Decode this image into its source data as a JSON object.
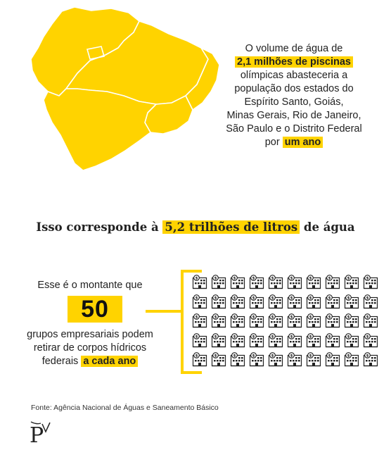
{
  "intro": {
    "line1": "O volume de água de",
    "highlight": "2,1 milhões de piscinas",
    "line3": "olímpicas abasteceria a",
    "line4": "população dos estados do",
    "line5": "Espírito Santo, Goiás,",
    "line6": "Minas Gerais, Rio de Janeiro,",
    "line7": "São Paulo e o Distrito Federal",
    "line8_prefix": "por",
    "line8_highlight": "um ano"
  },
  "headline": {
    "prefix": "Isso corresponde à",
    "highlight": "5,2 trilhões de litros",
    "suffix": "de água"
  },
  "groups": {
    "line1": "Esse é o montante que",
    "count": "50",
    "line3": "grupos empresariais podem",
    "line4": "retirar de corpos hídricos",
    "line5_prefix": "federais",
    "line5_highlight": "a cada ano",
    "icon_count": 50,
    "icon_rows": 5,
    "icon_cols": 10
  },
  "source": "Fonte: Agência Nacional de Águas e Saneamento Básico",
  "colors": {
    "accent": "#ffd300",
    "text": "#222222",
    "map_stroke": "#ffffff"
  }
}
